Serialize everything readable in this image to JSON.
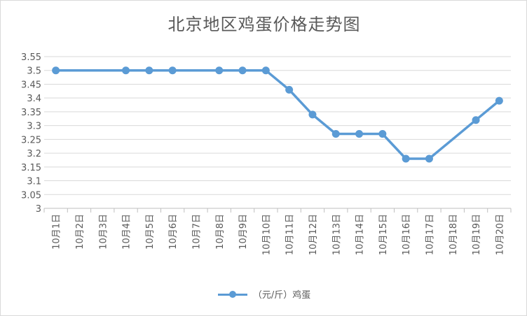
{
  "chart_data": {
    "type": "line",
    "title": "北京地区鸡蛋价格走势图",
    "categories": [
      "10月1日",
      "10月2日",
      "10月3日",
      "10月4日",
      "10月5日",
      "10月6日",
      "10月7日",
      "10月8日",
      "10月9日",
      "10月10日",
      "10月11日",
      "10月12日",
      "10月13日",
      "10月14日",
      "10月15日",
      "10月16日",
      "10月17日",
      "10月18日",
      "10月19日",
      "10月20日"
    ],
    "series": [
      {
        "name": "（元/斤）鸡蛋",
        "color": "#5b9bd5",
        "values": [
          3.5,
          null,
          null,
          3.5,
          3.5,
          3.5,
          null,
          3.5,
          3.5,
          3.5,
          3.43,
          3.34,
          3.27,
          3.27,
          3.27,
          3.18,
          3.18,
          null,
          3.32,
          3.39
        ]
      }
    ],
    "ylim": [
      3,
      3.55
    ],
    "yticks": [
      "3",
      "3.05",
      "3.1",
      "3.15",
      "3.2",
      "3.25",
      "3.3",
      "3.35",
      "3.4",
      "3.45",
      "3.5",
      "3.55"
    ],
    "grid": true,
    "legend": "bottom"
  }
}
